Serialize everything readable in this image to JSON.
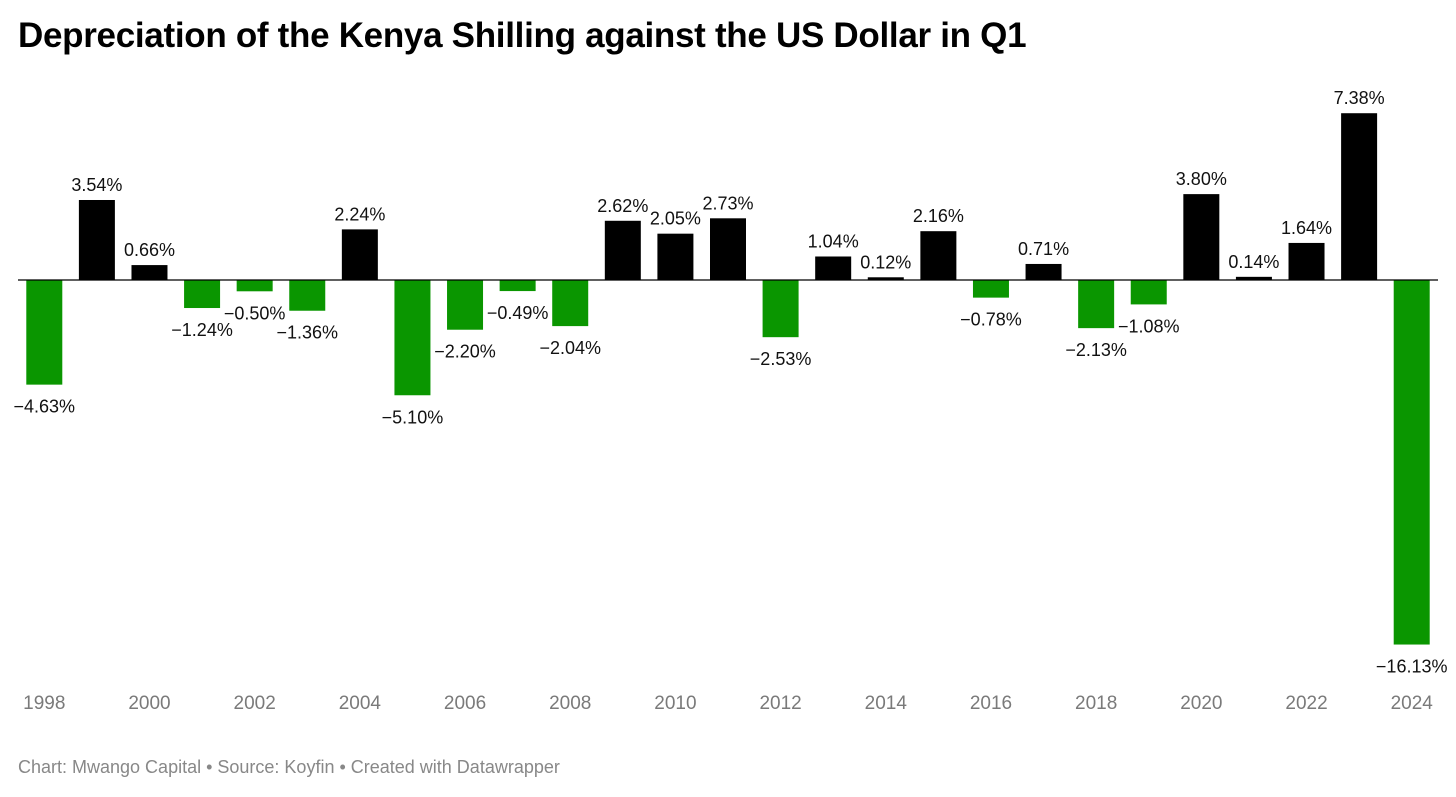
{
  "chart_data": {
    "type": "bar",
    "title": "Depreciation of the Kenya Shilling against the US Dollar in Q1",
    "footer": "Chart: Mwango Capital • Source: Koyfin • Created with Datawrapper",
    "categories": [
      "1998",
      "1999",
      "2000",
      "2001",
      "2002",
      "2003",
      "2004",
      "2005",
      "2006",
      "2007",
      "2008",
      "2009",
      "2010",
      "2011",
      "2012",
      "2013",
      "2014",
      "2015",
      "2016",
      "2017",
      "2018",
      "2019",
      "2020",
      "2021",
      "2022",
      "2023",
      "2024"
    ],
    "values": [
      -4.63,
      3.54,
      0.66,
      -1.24,
      -0.5,
      -1.36,
      2.24,
      -5.1,
      -2.2,
      -0.49,
      -2.04,
      2.62,
      2.05,
      2.73,
      -2.53,
      1.04,
      0.12,
      2.16,
      -0.78,
      0.71,
      -2.13,
      -1.08,
      3.8,
      0.14,
      1.64,
      7.38,
      -16.13
    ],
    "value_labels": [
      "−4.63%",
      "3.54%",
      "0.66%",
      "−1.24%",
      "−0.50%",
      "−1.36%",
      "2.24%",
      "−5.10%",
      "−2.20%",
      "−0.49%",
      "−2.04%",
      "2.62%",
      "2.05%",
      "2.73%",
      "−2.53%",
      "1.04%",
      "0.12%",
      "2.16%",
      "−0.78%",
      "0.71%",
      "−2.13%",
      "−1.08%",
      "3.80%",
      "0.14%",
      "1.64%",
      "7.38%",
      "−16.13%"
    ],
    "x_tick_labels": [
      "1998",
      "2000",
      "2002",
      "2004",
      "2006",
      "2008",
      "2010",
      "2012",
      "2014",
      "2016",
      "2018",
      "2020",
      "2022",
      "2024"
    ],
    "ylim": [
      -16.13,
      7.38
    ],
    "grid": false,
    "colors": {
      "positive": "#000000",
      "negative": "#0a9600",
      "baseline": "#000000"
    }
  }
}
